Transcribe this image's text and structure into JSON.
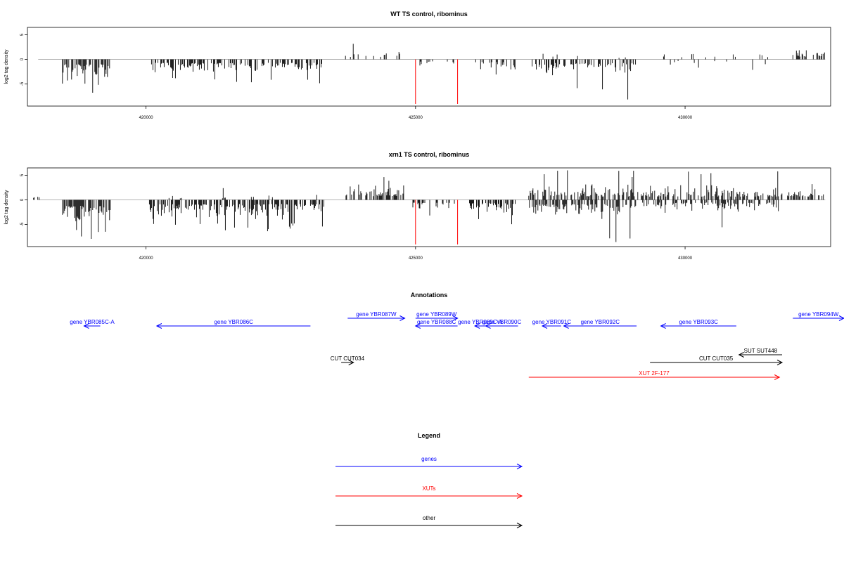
{
  "colors": {
    "gene": "#0000ff",
    "xut": "#ff0000",
    "other": "#000000",
    "signal": "#000000",
    "marker": "#ff0000",
    "baseline": "#999999"
  },
  "chart_data": [
    {
      "type": "bar",
      "title": "WT TS control, ribominus",
      "ylabel": "log2 tag density",
      "xlim": [
        417800,
        432700
      ],
      "ylim": [
        -9.5,
        6.5
      ],
      "xticks": [
        420000,
        425000,
        430000
      ],
      "yticks": [
        5,
        0,
        -5
      ],
      "markers": [
        425000,
        425780
      ],
      "regions": [
        {
          "from": 418450,
          "to": 419350,
          "sign": -1,
          "mean": 3.2,
          "peak": 7.0,
          "density": 0.6
        },
        {
          "from": 420050,
          "to": 423300,
          "sign": -1,
          "mean": 2.3,
          "peak": 5.0,
          "density": 0.45
        },
        {
          "from": 423700,
          "to": 424800,
          "sign": 1,
          "mean": 1.5,
          "peak": 3.8,
          "density": 0.15
        },
        {
          "from": 424950,
          "to": 425800,
          "sign": -1,
          "mean": 1.4,
          "peak": 2.8,
          "density": 0.25
        },
        {
          "from": 426050,
          "to": 426900,
          "sign": -1,
          "mean": 1.8,
          "peak": 4.0,
          "density": 0.3
        },
        {
          "from": 427150,
          "to": 429100,
          "sign": -1,
          "mean": 2.5,
          "peak": 8.2,
          "density": 0.45
        },
        {
          "from": 427300,
          "to": 429000,
          "sign": 1,
          "mean": 1.0,
          "peak": 2.8,
          "density": 0.05
        },
        {
          "from": 429600,
          "to": 431600,
          "sign": 1,
          "mean": 1.3,
          "peak": 2.8,
          "density": 0.1
        },
        {
          "from": 429700,
          "to": 431500,
          "sign": -1,
          "mean": 1.2,
          "peak": 3.0,
          "density": 0.08
        },
        {
          "from": 432000,
          "to": 432600,
          "sign": 1,
          "mean": 1.8,
          "peak": 4.2,
          "density": 0.35
        }
      ]
    },
    {
      "type": "bar",
      "title": "xrn1 TS control, ribominus",
      "ylabel": "log2 tag density",
      "xlim": [
        417800,
        432700
      ],
      "ylim": [
        -9.5,
        6.5
      ],
      "xticks": [
        420000,
        425000,
        430000
      ],
      "yticks": [
        5,
        0,
        -5
      ],
      "markers": [
        425000,
        425780
      ],
      "regions": [
        {
          "from": 417900,
          "to": 418300,
          "sign": 1,
          "mean": 1.2,
          "peak": 2.5,
          "density": 0.15
        },
        {
          "from": 418450,
          "to": 419350,
          "sign": -1,
          "mean": 4.0,
          "peak": 8.5,
          "density": 0.7
        },
        {
          "from": 420050,
          "to": 423300,
          "sign": -1,
          "mean": 2.8,
          "peak": 6.5,
          "density": 0.6
        },
        {
          "from": 420100,
          "to": 423300,
          "sign": 1,
          "mean": 1.0,
          "peak": 2.5,
          "density": 0.08
        },
        {
          "from": 423500,
          "to": 424800,
          "sign": 1,
          "mean": 2.5,
          "peak": 5.0,
          "density": 0.5
        },
        {
          "from": 424950,
          "to": 425800,
          "sign": -1,
          "mean": 1.8,
          "peak": 4.0,
          "density": 0.35
        },
        {
          "from": 426000,
          "to": 426900,
          "sign": -1,
          "mean": 2.2,
          "peak": 5.0,
          "density": 0.5
        },
        {
          "from": 427100,
          "to": 429100,
          "sign": -1,
          "mean": 2.8,
          "peak": 8.8,
          "density": 0.6
        },
        {
          "from": 427100,
          "to": 431800,
          "sign": 1,
          "mean": 2.2,
          "peak": 6.0,
          "density": 0.5
        },
        {
          "from": 429200,
          "to": 431800,
          "sign": -1,
          "mean": 1.8,
          "peak": 6.5,
          "density": 0.35
        },
        {
          "from": 431900,
          "to": 432600,
          "sign": 1,
          "mean": 2.2,
          "peak": 4.0,
          "density": 0.5
        }
      ]
    }
  ],
  "annotations": {
    "title": "Annotations",
    "features": [
      {
        "label": "gene YBR085C-A",
        "type": "gene",
        "start": 419150,
        "end": 418850,
        "lane": 1
      },
      {
        "label": "gene YBR086C",
        "type": "gene",
        "start": 423050,
        "end": 420200,
        "lane": 1
      },
      {
        "label": "gene YBR087W",
        "type": "gene",
        "start": 423740,
        "end": 424800,
        "lane": 0
      },
      {
        "label": "gene YBR088C",
        "type": "gene",
        "start": 425780,
        "end": 425000,
        "lane": 1
      },
      {
        "label": "gene YBR089W",
        "type": "gene",
        "start": 425000,
        "end": 425780,
        "lane": 0
      },
      {
        "label": "gene YBR089C-A",
        "type": "gene",
        "start": 426300,
        "end": 426100,
        "lane": 1
      },
      {
        "label": "gene YBR090C",
        "type": "gene",
        "start": 426900,
        "end": 426300,
        "lane": 1
      },
      {
        "label": "gene YBR091C",
        "type": "gene",
        "start": 427700,
        "end": 427350,
        "lane": 1
      },
      {
        "label": "gene YBR092C",
        "type": "gene",
        "start": 429100,
        "end": 427750,
        "lane": 1
      },
      {
        "label": "gene YBR093C",
        "type": "gene",
        "start": 430950,
        "end": 429550,
        "lane": 1
      },
      {
        "label": "gene YBR094W",
        "type": "gene",
        "start": 432000,
        "end": 433200,
        "lane": 0
      },
      {
        "label": "CUT CUT034",
        "type": "other",
        "start": 423620,
        "end": 423850,
        "lane": 2
      },
      {
        "label": "SUT SUT448",
        "type": "other",
        "start": 431800,
        "end": 431000,
        "lane": 3
      },
      {
        "label": "CUT CUT035",
        "type": "other",
        "start": 429350,
        "end": 431800,
        "lane": 2
      },
      {
        "label": "XUT 2F-177",
        "type": "xut",
        "start": 427100,
        "end": 431750,
        "lane": 4
      }
    ]
  },
  "legend": {
    "title": "Legend",
    "items": [
      {
        "label": "genes",
        "type": "gene"
      },
      {
        "label": "XUTs",
        "type": "xut"
      },
      {
        "label": "other",
        "type": "other"
      }
    ]
  }
}
